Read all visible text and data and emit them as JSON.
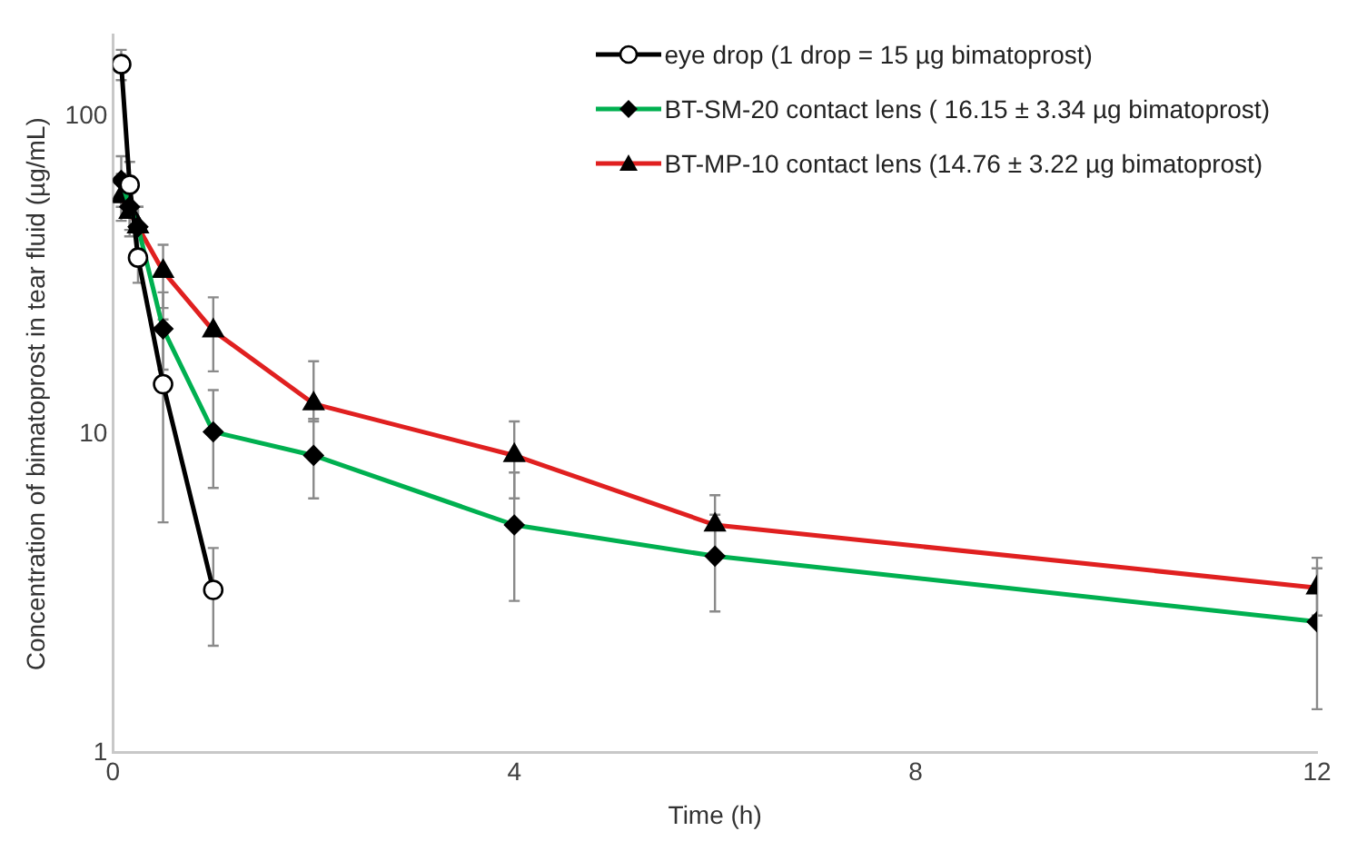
{
  "chart_data": {
    "type": "line",
    "xlabel": "Time (h)",
    "ylabel": "Concentration of bimatoprost in tear fluid (µg/mL)",
    "log": "y",
    "grid": false,
    "legend": "top right",
    "xlim": [
      0,
      12
    ],
    "xticks": [
      0,
      4,
      8,
      12
    ],
    "ylim": [
      1,
      180
    ],
    "yticks": [
      1,
      10,
      100
    ],
    "line_style": "solid",
    "series": [
      {
        "name": "eye drop (1 drop = 15 µg bimatoprost)",
        "color": "#000000",
        "marker": "circle",
        "x": [
          0.083,
          0.167,
          0.25,
          0.5,
          1
        ],
        "values": [
          146,
          61,
          36,
          14.4,
          3.25
        ],
        "errors": [
          [
            130,
            162
          ],
          [
            50,
            72
          ],
          [
            30,
            43
          ],
          [
            5.3,
            23
          ],
          [
            2.17,
            4.4
          ]
        ]
      },
      {
        "name": "BT-SM-20 contact lens ( 16.15 ± 3.34 µg bimatoprost)",
        "color": "#00b050",
        "marker": "diamond",
        "x": [
          0.083,
          0.167,
          0.25,
          0.5,
          1,
          2,
          4,
          6,
          12
        ],
        "values": [
          63,
          52,
          45,
          21.5,
          10.2,
          8.6,
          5.2,
          4.15,
          2.58
        ],
        "errors": [
          [
            52,
            75
          ],
          [
            44,
            60
          ],
          [
            38,
            52
          ],
          [
            16,
            28
          ],
          [
            6.8,
            13.8
          ],
          [
            6.3,
            11.2
          ],
          [
            3.0,
            7.6
          ],
          [
            2.78,
            5.6
          ],
          [
            1.37,
            3.8
          ]
        ]
      },
      {
        "name": "BT-MP-10 contact lens (14.76 ± 3.22 µg bimatoprost)",
        "color": "#e02020",
        "marker": "triangle",
        "x": [
          0.083,
          0.167,
          0.25,
          0.5,
          1,
          2,
          4,
          6,
          12
        ],
        "values": [
          56,
          50,
          45,
          32.6,
          21.2,
          12.5,
          8.6,
          5.2,
          3.3
        ],
        "errors": [
          [
            47,
            66
          ],
          [
            42,
            58
          ],
          [
            38,
            52
          ],
          [
            25,
            39.5
          ],
          [
            15.8,
            27
          ],
          [
            11,
            17
          ],
          [
            6.3,
            11
          ],
          [
            4.2,
            6.45
          ],
          [
            2.7,
            4.1
          ]
        ]
      }
    ]
  }
}
